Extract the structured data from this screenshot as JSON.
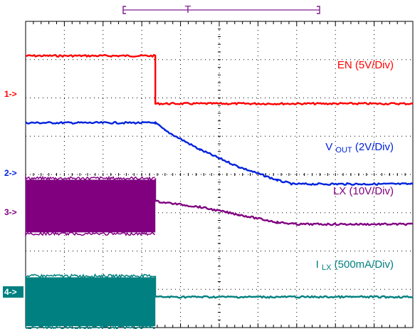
{
  "trigger": {
    "label": "T",
    "color": "#7f1f8f"
  },
  "channels": [
    {
      "id": "ch1",
      "marker": "1->",
      "marker_style": "text",
      "color": "#ff0000",
      "label_main": "EN (5V/Div)",
      "label_sub": "",
      "label_rest": ""
    },
    {
      "id": "ch2",
      "marker": "2->",
      "marker_style": "text",
      "color": "#0022dd",
      "label_main": "V",
      "label_sub": "OUT",
      "label_rest": " (2V/Div)"
    },
    {
      "id": "ch3",
      "marker": "3->",
      "marker_style": "text",
      "color": "#800080",
      "label_main": "LX (10V/Div)",
      "label_sub": "",
      "label_rest": ""
    },
    {
      "id": "ch4",
      "marker": "4->",
      "marker_style": "box",
      "color": "#008080",
      "label_main": "I",
      "label_sub": "LX",
      "label_rest": " (500mA/Div)"
    }
  ],
  "chart_data": {
    "type": "line",
    "title": "",
    "xlabel": "",
    "ylabel": "",
    "grid": true,
    "x_divisions": 10,
    "y_divisions": 8,
    "x_range": [
      0,
      10
    ],
    "y_range": [
      -4,
      4
    ],
    "series": [
      {
        "name": "EN (5V/Div)",
        "color": "#ff0000",
        "kind": "step",
        "points": [
          [
            0,
            3.1
          ],
          [
            3.35,
            3.1
          ],
          [
            3.35,
            1.85
          ],
          [
            10,
            1.85
          ]
        ]
      },
      {
        "name": "VOUT (2V/Div)",
        "color": "#0022dd",
        "kind": "line",
        "points": [
          [
            0,
            1.35
          ],
          [
            3.35,
            1.35
          ],
          [
            3.6,
            1.15
          ],
          [
            4.5,
            0.65
          ],
          [
            5.5,
            0.2
          ],
          [
            6.5,
            -0.15
          ],
          [
            6.9,
            -0.25
          ],
          [
            10,
            -0.25
          ]
        ]
      },
      {
        "name": "LX (10V/Div)",
        "color": "#800080",
        "kind": "burst_then_line",
        "burst": {
          "x_start": 0,
          "x_end": 3.35,
          "y_top": -0.1,
          "y_bottom": -1.55
        },
        "points": [
          [
            3.35,
            -0.7
          ],
          [
            4.5,
            -0.85
          ],
          [
            5.5,
            -1.05
          ],
          [
            6.5,
            -1.25
          ],
          [
            7,
            -1.3
          ],
          [
            10,
            -1.3
          ]
        ]
      },
      {
        "name": "ILX (500mA/Div)",
        "color": "#008080",
        "kind": "burst_then_line",
        "burst": {
          "x_start": 0,
          "x_end": 3.35,
          "y_top": -2.65,
          "y_bottom": -4.0
        },
        "points": [
          [
            3.35,
            -3.2
          ],
          [
            10,
            -3.2
          ]
        ]
      }
    ]
  }
}
